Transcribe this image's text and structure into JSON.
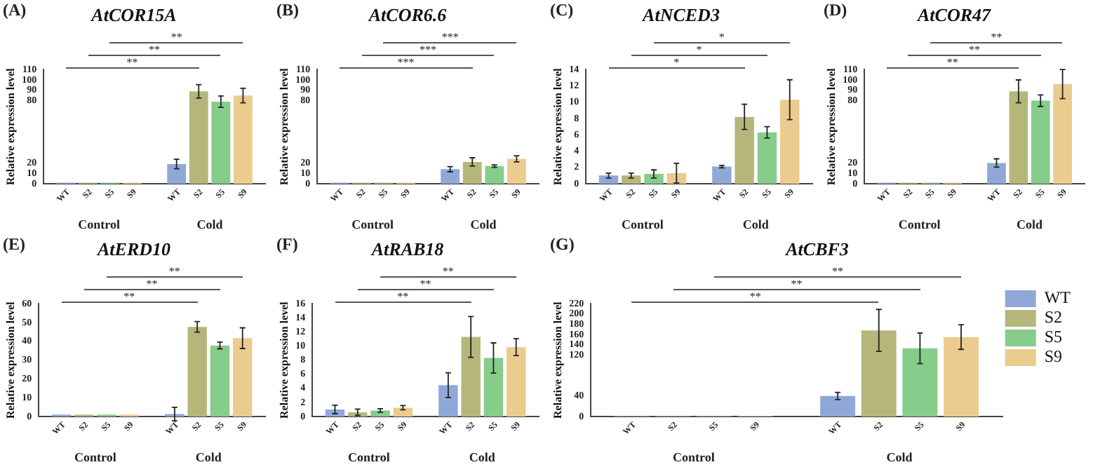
{
  "chart_data": [
    {
      "type": "bar",
      "title": "AtCOR15A",
      "ylabel": "Relative expression level",
      "categories": [
        "Control",
        "Cold"
      ],
      "ylim": [
        0,
        110
      ],
      "yticks": [
        0,
        10,
        20,
        80,
        90,
        100,
        110
      ],
      "grid": false,
      "annotations": [
        "(A)",
        "**",
        "**",
        "**"
      ],
      "series": [
        {
          "name": "WT",
          "color": "#8fa8d8",
          "values": [
            1,
            19
          ],
          "errors": [
            null,
            4.5
          ]
        },
        {
          "name": "S2",
          "color": "#b5b67a",
          "values": [
            1,
            89
          ],
          "errors": [
            null,
            6.5
          ]
        },
        {
          "name": "S5",
          "color": "#86cc8a",
          "values": [
            1,
            79
          ],
          "errors": [
            null,
            5.5
          ]
        },
        {
          "name": "S9",
          "color": "#ebcb8e",
          "values": [
            1,
            85
          ],
          "errors": [
            null,
            7
          ]
        }
      ]
    },
    {
      "type": "bar",
      "title": "AtCOR6.6",
      "ylabel": "Relative expression level",
      "categories": [
        "Control",
        "Cold"
      ],
      "ylim": [
        0,
        110
      ],
      "yticks": [
        0,
        10,
        20,
        80,
        90,
        100,
        110
      ],
      "grid": false,
      "annotations": [
        "(B)",
        "***",
        "***",
        "***"
      ],
      "series": [
        {
          "name": "WT",
          "color": "#8fa8d8",
          "values": [
            1,
            14
          ],
          "errors": [
            null,
            2.5
          ]
        },
        {
          "name": "S2",
          "color": "#b5b67a",
          "values": [
            1,
            21
          ],
          "errors": [
            null,
            4
          ]
        },
        {
          "name": "S5",
          "color": "#86cc8a",
          "values": [
            1,
            17
          ],
          "errors": [
            null,
            1.2
          ]
        },
        {
          "name": "S9",
          "color": "#ebcb8e",
          "values": [
            1,
            24
          ],
          "errors": [
            null,
            3
          ]
        }
      ]
    },
    {
      "type": "bar",
      "title": "AtNCED3",
      "ylabel": "Relative expression level",
      "categories": [
        "Control",
        "Cold"
      ],
      "ylim": [
        0,
        14
      ],
      "yticks": [
        0,
        2,
        4,
        6,
        8,
        10,
        12,
        14
      ],
      "grid": false,
      "annotations": [
        "(C)",
        "*",
        "*",
        "*"
      ],
      "series": [
        {
          "name": "WT",
          "color": "#8fa8d8",
          "values": [
            1,
            2.1
          ],
          "errors": [
            0.3,
            0.15
          ]
        },
        {
          "name": "S2",
          "color": "#b5b67a",
          "values": [
            1,
            8.2
          ],
          "errors": [
            0.3,
            1.55
          ]
        },
        {
          "name": "S5",
          "color": "#86cc8a",
          "values": [
            1.2,
            6.3
          ],
          "errors": [
            0.5,
            0.7
          ]
        },
        {
          "name": "S9",
          "color": "#ebcb8e",
          "values": [
            1.3,
            10.3
          ],
          "errors": [
            1.2,
            2.45
          ]
        }
      ]
    },
    {
      "type": "bar",
      "title": "AtCOR47",
      "ylabel": "Relative expression level",
      "categories": [
        "Control",
        "Cold"
      ],
      "ylim": [
        0,
        110
      ],
      "yticks": [
        0,
        10,
        20,
        80,
        90,
        100,
        110
      ],
      "grid": false,
      "annotations": [
        "(D)",
        "**",
        "**",
        "**"
      ],
      "series": [
        {
          "name": "WT",
          "color": "#8fa8d8",
          "values": [
            1,
            20
          ],
          "errors": [
            null,
            4
          ]
        },
        {
          "name": "S2",
          "color": "#b5b67a",
          "values": [
            1,
            89
          ],
          "errors": [
            null,
            11
          ]
        },
        {
          "name": "S5",
          "color": "#86cc8a",
          "values": [
            1,
            80
          ],
          "errors": [
            null,
            5.5
          ]
        },
        {
          "name": "S9",
          "color": "#ebcb8e",
          "values": [
            1,
            96
          ],
          "errors": [
            null,
            14
          ]
        }
      ]
    },
    {
      "type": "bar",
      "title": "AtERD10",
      "ylabel": "Relative expression level",
      "categories": [
        "Control",
        "Cold"
      ],
      "ylim": [
        0,
        60
      ],
      "yticks": [
        0,
        10,
        20,
        30,
        40,
        50,
        60
      ],
      "grid": false,
      "annotations": [
        "(E)",
        "**",
        "**",
        "**"
      ],
      "series": [
        {
          "name": "WT",
          "color": "#8fa8d8",
          "values": [
            1,
            1.3
          ],
          "errors": [
            null,
            3.6
          ]
        },
        {
          "name": "S2",
          "color": "#b5b67a",
          "values": [
            1,
            47.7
          ],
          "errors": [
            null,
            2.8
          ]
        },
        {
          "name": "S5",
          "color": "#86cc8a",
          "values": [
            1,
            37.8
          ],
          "errors": [
            null,
            1.8
          ]
        },
        {
          "name": "S9",
          "color": "#ebcb8e",
          "values": [
            1,
            41.7
          ],
          "errors": [
            null,
            5.5
          ]
        }
      ]
    },
    {
      "type": "bar",
      "title": "AtRAB18",
      "ylabel": "Relative expression level",
      "categories": [
        "Control",
        "Cold"
      ],
      "ylim": [
        0,
        16
      ],
      "yticks": [
        0,
        2,
        4,
        6,
        8,
        10,
        12,
        14,
        16
      ],
      "grid": false,
      "annotations": [
        "(F)",
        "**",
        "**",
        "**"
      ],
      "series": [
        {
          "name": "WT",
          "color": "#8fa8d8",
          "values": [
            1,
            4.45
          ],
          "errors": [
            0.6,
            1.75
          ]
        },
        {
          "name": "S2",
          "color": "#b5b67a",
          "values": [
            0.6,
            11.3
          ],
          "errors": [
            0.45,
            2.9
          ]
        },
        {
          "name": "S5",
          "color": "#86cc8a",
          "values": [
            0.85,
            8.3
          ],
          "errors": [
            0.25,
            2.15
          ]
        },
        {
          "name": "S9",
          "color": "#ebcb8e",
          "values": [
            1.25,
            9.85
          ],
          "errors": [
            0.3,
            1.2
          ]
        }
      ]
    },
    {
      "type": "bar",
      "title": "AtCBF3",
      "ylabel": "Relative expression level",
      "categories": [
        "Control",
        "Cold"
      ],
      "ylim": [
        0,
        220
      ],
      "yticks": [
        0,
        40,
        120,
        140,
        160,
        180,
        200,
        220
      ],
      "grid": false,
      "legend": "right",
      "annotations": [
        "(G)",
        "**",
        "**",
        "**"
      ],
      "series": [
        {
          "name": "WT",
          "color": "#8fa8d8",
          "values": [
            1,
            40
          ],
          "errors": [
            null,
            7
          ]
        },
        {
          "name": "S2",
          "color": "#b5b67a",
          "values": [
            1,
            168
          ],
          "errors": [
            null,
            41
          ]
        },
        {
          "name": "S5",
          "color": "#86cc8a",
          "values": [
            1,
            133
          ],
          "errors": [
            null,
            30
          ]
        },
        {
          "name": "S9",
          "color": "#ebcb8e",
          "values": [
            1,
            155
          ],
          "errors": [
            null,
            24
          ]
        }
      ]
    }
  ]
}
